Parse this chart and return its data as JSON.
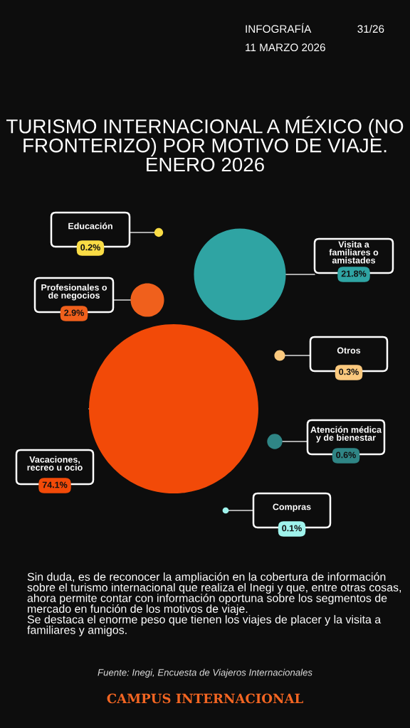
{
  "chart_data": {
    "type": "other",
    "title": "TURISMO INTERNACIONAL A MÉXICO (NO FRONTERIZO) POR MOTIVO DE VIAJE. ENERO 2026",
    "categories": [
      "Educación",
      "Visita a familiares o amistades",
      "Profesionales o de negocios",
      "Vacaciones, recreo u ocio",
      "Otros",
      "Atención médica y de bienestar",
      "Compras"
    ],
    "values": [
      0.2,
      21.8,
      2.9,
      74.1,
      0.3,
      0.6,
      0.1
    ],
    "value_labels": [
      "0.2%",
      "21.8%",
      "2.9%",
      "74.1%",
      "0.3%",
      "0.6%",
      "0.1%"
    ],
    "colors": [
      "#f9dc45",
      "#2fa4a3",
      "#f0601c",
      "#f24a08",
      "#fbc97e",
      "#2f8585",
      "#9ff3ec"
    ],
    "annotations": [
      "INFOGRAFÍA",
      "31/26",
      "11 MARZO 2026",
      "Sin duda, es de reconocer la ampliación en la cobertura de información sobre el turismo internacional que realiza el Inegi y que, entre otras cosas, ahora permite contar con información oportuna sobre los segmentos de mercado en función de los motivos de viaje.\nSe destaca el enorme peso que tienen los viajes de placer y la visita a familiares y amigos.",
      "Fuente: Inegi, Encuesta de Viajeros Internacionales",
      "CAMPUS INTERNACIONAL"
    ]
  }
}
